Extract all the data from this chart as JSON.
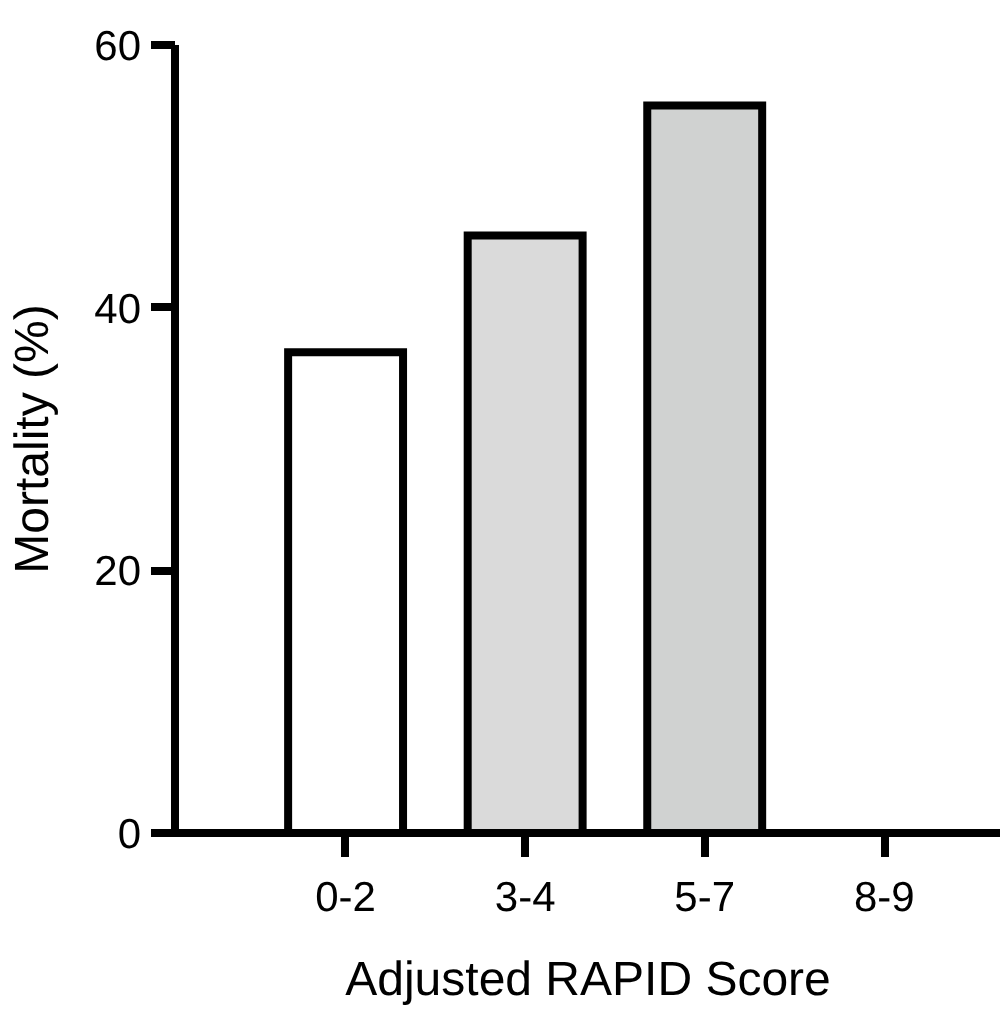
{
  "chart_data": {
    "type": "bar",
    "xlabel": "Adjusted RAPID Score",
    "ylabel": "Mortality (%)",
    "categories": [
      "0-2",
      "3-4",
      "5-7",
      "8-9"
    ],
    "values": [
      36.6,
      45.5,
      55.4,
      0
    ],
    "colors": [
      "#ffffff",
      "#dadada",
      "#d0d2d1",
      "#000000"
    ],
    "ylim": [
      0,
      60
    ],
    "yticks": [
      0,
      20,
      40,
      60
    ],
    "grid": false
  }
}
